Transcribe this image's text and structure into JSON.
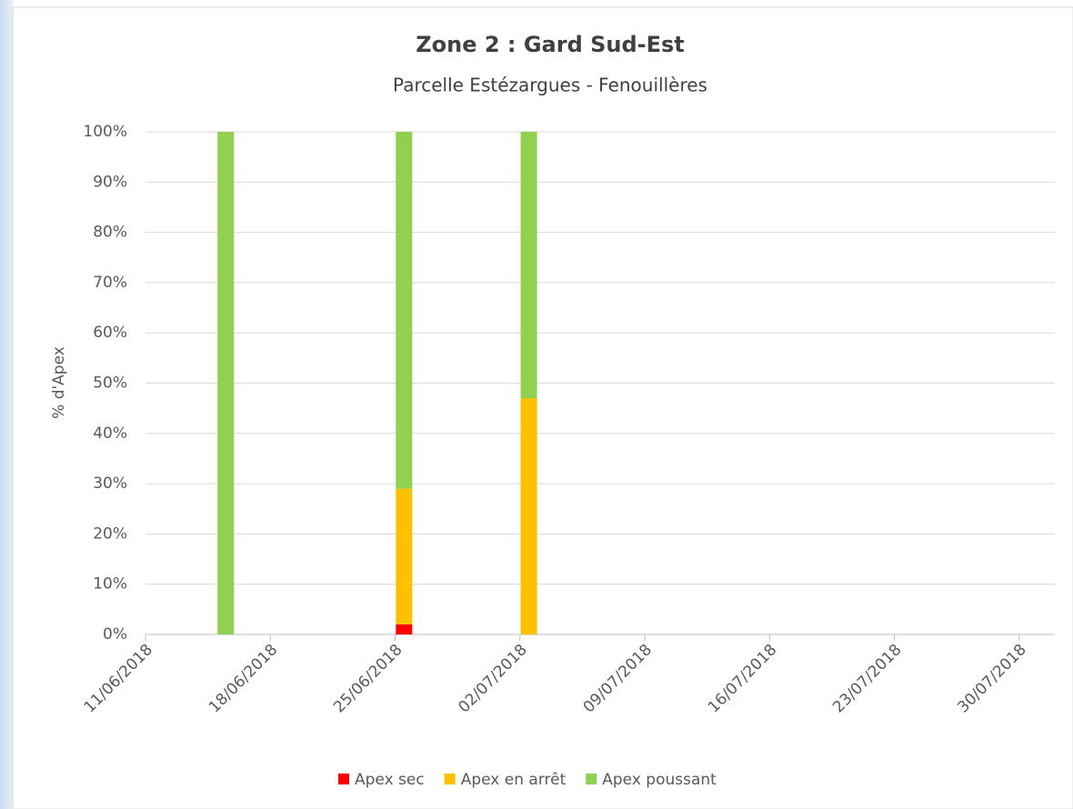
{
  "chart_data": {
    "type": "stacked-bar",
    "title": "Zone 2 : Gard Sud-Est",
    "subtitle": "Parcelle Estézargues - Fenouillères",
    "y_label": "% d'Apex",
    "x": [
      "15/06/2018",
      "25/06/2018",
      "02/07/2018"
    ],
    "series": [
      {
        "name": "Apex sec",
        "color": "#ff0000",
        "values": [
          0,
          2,
          0
        ]
      },
      {
        "name": "Apex en arrêt",
        "color": "#ffc000",
        "values": [
          0,
          27,
          47
        ]
      },
      {
        "name": "Apex poussant",
        "color": "#92d050",
        "values": [
          100,
          71,
          53
        ]
      }
    ],
    "xlim": [
      "11/06/2018",
      "01/08/2018"
    ],
    "xticks": [
      "11/06/2018",
      "18/06/2018",
      "25/06/2018",
      "02/07/2018",
      "09/07/2018",
      "16/07/2018",
      "23/07/2018",
      "30/07/2018"
    ],
    "ylim": [
      0,
      100
    ],
    "yticks": [
      {
        "value": 0,
        "label": "0%"
      },
      {
        "value": 10,
        "label": "10%"
      },
      {
        "value": 20,
        "label": "20%"
      },
      {
        "value": 30,
        "label": "30%"
      },
      {
        "value": 40,
        "label": "40%"
      },
      {
        "value": 50,
        "label": "50%"
      },
      {
        "value": 60,
        "label": "60%"
      },
      {
        "value": 70,
        "label": "70%"
      },
      {
        "value": 80,
        "label": "80%"
      },
      {
        "value": 90,
        "label": "90%"
      },
      {
        "value": 100,
        "label": "100%"
      }
    ],
    "grid": true,
    "legend": "bottom"
  }
}
